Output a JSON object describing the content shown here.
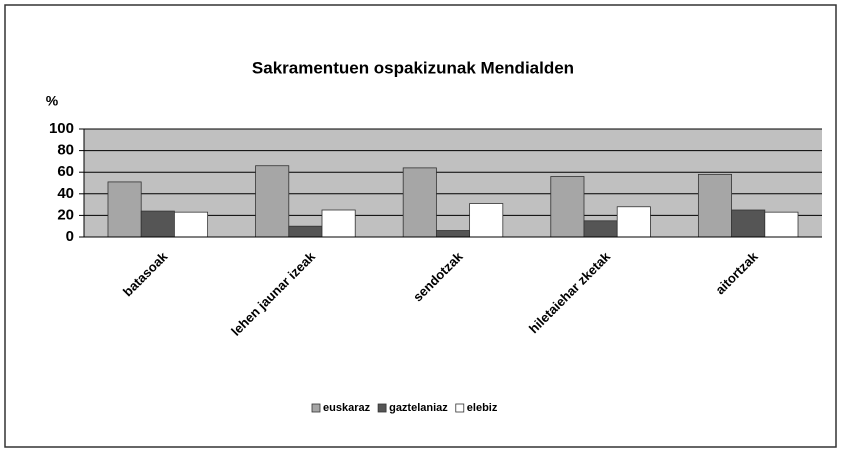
{
  "chart_data": {
    "type": "bar",
    "title": "Sakramentuen ospakizunak Mendialden",
    "y_label": "%",
    "categories": [
      "batasoak",
      "lehen jaunar izeak",
      "sendotzak",
      "hiletaiehar zketak",
      "aitortzak"
    ],
    "series": [
      {
        "name": "euskaraz",
        "color": "#a6a6a6",
        "values": [
          51,
          66,
          64,
          56,
          58
        ]
      },
      {
        "name": "gaztelaniaz",
        "color": "#555555",
        "values": [
          24,
          10,
          6,
          15,
          25
        ]
      },
      {
        "name": "elebiz",
        "color": "#ffffff",
        "values": [
          23,
          25,
          31,
          28,
          23
        ]
      }
    ],
    "ylim": [
      0,
      100
    ],
    "yticks": [
      0,
      20,
      40,
      60,
      80,
      100
    ],
    "grid": true,
    "legend": "bottom"
  }
}
